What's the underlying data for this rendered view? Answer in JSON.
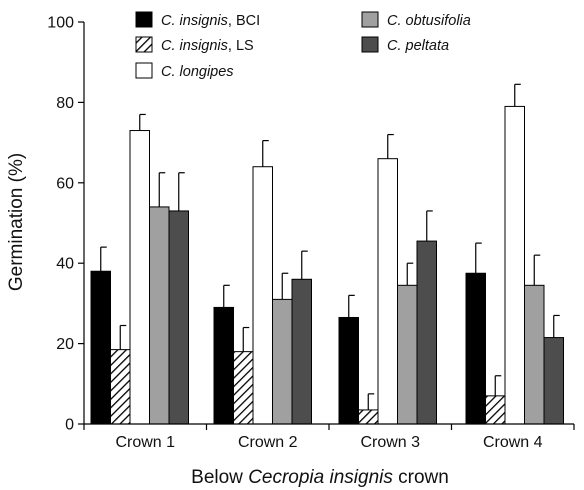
{
  "chart_data": {
    "type": "bar",
    "xlabel_parts": [
      {
        "text": "Below ",
        "italic": false
      },
      {
        "text": "Cecropia insignis",
        "italic": true
      },
      {
        "text": " crown",
        "italic": false
      }
    ],
    "ylabel": "Germination (%)",
    "ylim": [
      0,
      100
    ],
    "yticks": [
      0,
      20,
      40,
      60,
      80,
      100
    ],
    "grid": false,
    "legend_placement": "top-left",
    "categories": [
      "Crown 1",
      "Crown 2",
      "Crown 3",
      "Crown 4"
    ],
    "error_bars": "upper only",
    "series": [
      {
        "name": "C. insignis, BCI",
        "name_parts": [
          {
            "text": "C. insignis",
            "italic": true
          },
          {
            "text": ", BCI",
            "italic": false
          }
        ],
        "fill": "#000000",
        "pattern": "solid",
        "values": [
          38,
          29,
          26.5,
          37.5
        ],
        "errors": [
          6,
          5.5,
          5.5,
          7.5
        ]
      },
      {
        "name": "C. insignis, LS",
        "name_parts": [
          {
            "text": "C. insignis",
            "italic": true
          },
          {
            "text": ", LS",
            "italic": false
          }
        ],
        "fill": "#ffffff",
        "pattern": "hatch",
        "values": [
          18.5,
          18,
          3.5,
          7
        ],
        "errors": [
          6,
          6,
          4,
          5
        ]
      },
      {
        "name": "C. longipes",
        "name_parts": [
          {
            "text": "C. longipes",
            "italic": true
          }
        ],
        "fill": "#ffffff",
        "pattern": "solid",
        "values": [
          73,
          64,
          66,
          79
        ],
        "errors": [
          4,
          6.5,
          6,
          5.5
        ]
      },
      {
        "name": "C. obtusifolia",
        "name_parts": [
          {
            "text": "C. obtusifolia",
            "italic": true
          }
        ],
        "fill": "#a0a0a0",
        "pattern": "solid",
        "values": [
          54,
          31,
          34.5,
          34.5
        ],
        "errors": [
          8.5,
          6.5,
          5.5,
          7.5
        ]
      },
      {
        "name": "C. peltata",
        "name_parts": [
          {
            "text": "C. peltata",
            "italic": true
          }
        ],
        "fill": "#4d4d4d",
        "pattern": "solid",
        "values": [
          53,
          36,
          45.5,
          21.5
        ],
        "errors": [
          9.5,
          7,
          7.5,
          5.5
        ]
      }
    ]
  }
}
